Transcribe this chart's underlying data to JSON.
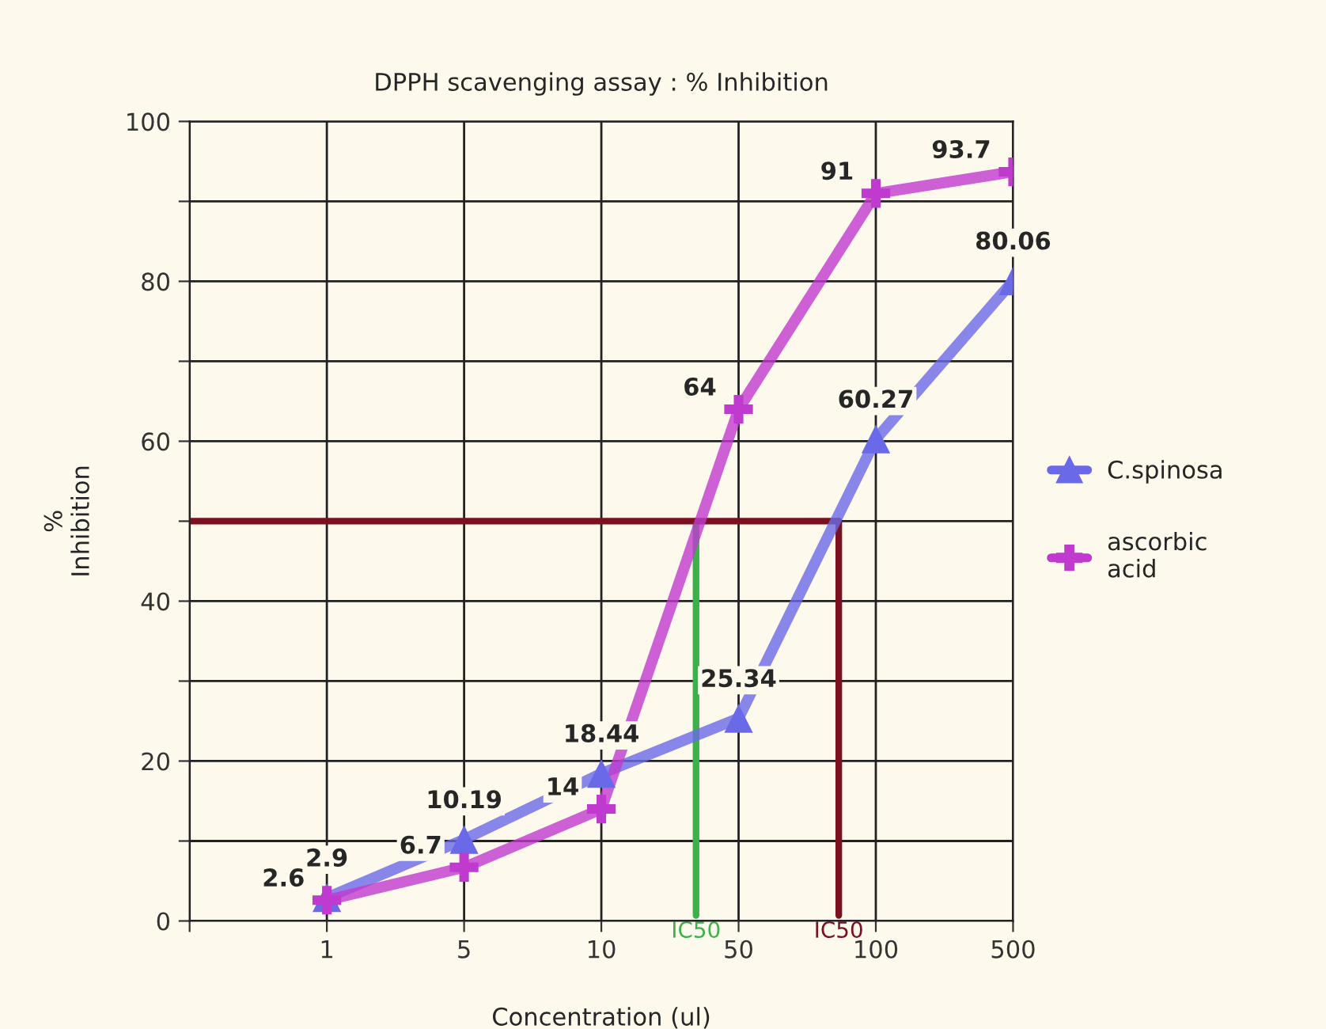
{
  "chart_data": {
    "type": "line",
    "title": "DPPH scavenging assay : % Inhibition",
    "xlabel": "Concentration (ul)",
    "ylabel": "%\nInhibition",
    "categories": [
      null,
      "1",
      "5",
      "10",
      "50",
      "100",
      "500"
    ],
    "ylim": [
      0,
      100
    ],
    "yticks": [
      0,
      {
        "value": 10,
        "label": null
      },
      20,
      {
        "value": 30,
        "label": null
      },
      40,
      {
        "value": 50,
        "label": null
      },
      60,
      {
        "value": 70,
        "label": null
      },
      80,
      {
        "value": 90,
        "label": null
      },
      100
    ],
    "series": [
      {
        "name": "C.spinosa",
        "color": "#6a6ae8",
        "marker": "triangle",
        "values": [
          null,
          2.9,
          10.19,
          18.44,
          25.34,
          60.27,
          80.06
        ]
      },
      {
        "name": "ascorbic\nacid",
        "color": "#c03ad0",
        "marker": "cross",
        "values": [
          null,
          2.6,
          6.7,
          14,
          64,
          91,
          93.7
        ]
      }
    ],
    "ref_lines": [
      {
        "axis": "y",
        "value": 50,
        "color": "#7b1020"
      }
    ],
    "annotations": [
      "IC50",
      "IC50"
    ],
    "data_labels": true,
    "grid": true,
    "legend": "right"
  }
}
